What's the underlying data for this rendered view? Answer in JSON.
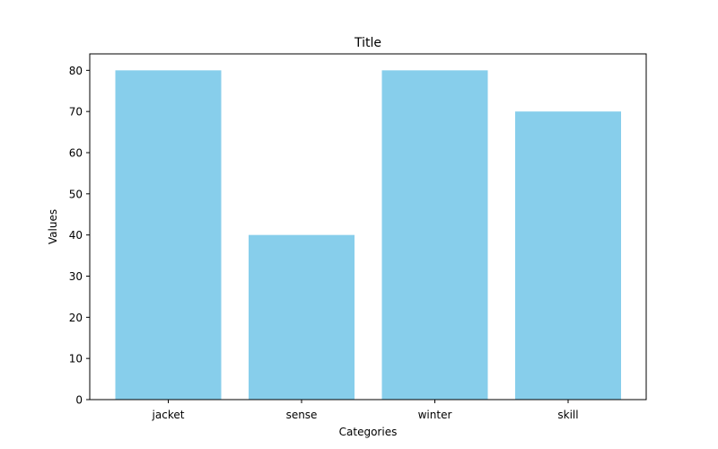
{
  "chart_data": {
    "type": "bar",
    "title": "Title",
    "xlabel": "Categories",
    "ylabel": "Values",
    "categories": [
      "jacket",
      "sense",
      "winter",
      "skill"
    ],
    "values": [
      80,
      40,
      80,
      70
    ],
    "ylim": [
      0,
      84
    ],
    "yticks": [
      0,
      10,
      20,
      30,
      40,
      50,
      60,
      70,
      80
    ],
    "bar_color": "#87CEEB",
    "grid": false,
    "legend": "none"
  }
}
